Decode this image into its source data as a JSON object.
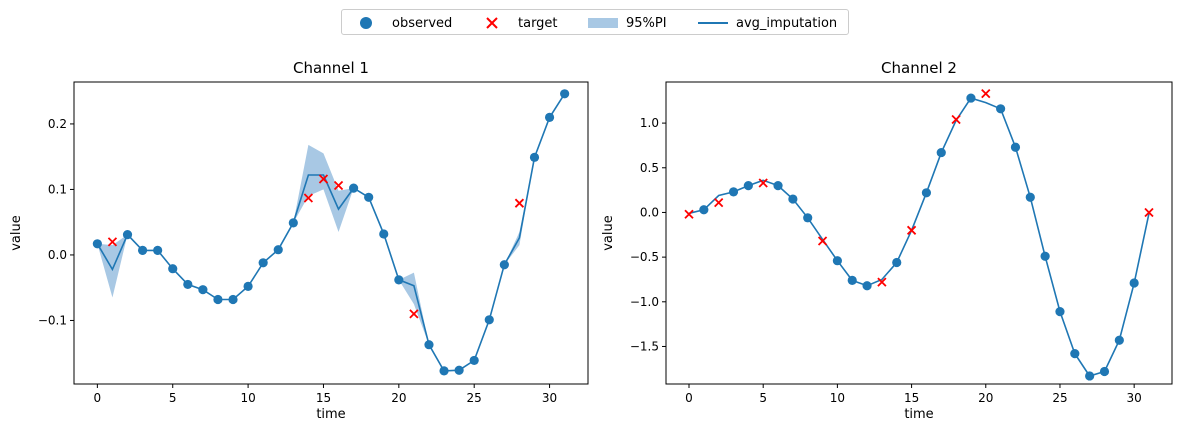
{
  "legend": {
    "observed": "observed",
    "target": "target",
    "pi": "95%PI",
    "avg": "avg_imputation"
  },
  "colors": {
    "series": "#1f77b4",
    "target": "#ff0000",
    "band": "#a8c8e4"
  },
  "chart_data": [
    {
      "type": "line",
      "title": "Channel 1",
      "xlabel": "time",
      "ylabel": "value",
      "xlim": [
        -1.55,
        32.55
      ],
      "ylim": [
        -0.197,
        0.264
      ],
      "xticks": [
        0,
        5,
        10,
        15,
        20,
        25,
        30
      ],
      "yticks": [
        -0.1,
        0.0,
        0.1,
        0.2
      ],
      "ytick_labels": [
        "−0.1",
        "0.0",
        "0.1",
        "0.2"
      ],
      "observed": [
        [
          0,
          0.017
        ],
        [
          2,
          0.031
        ],
        [
          3,
          0.007
        ],
        [
          4,
          0.007
        ],
        [
          5,
          -0.021
        ],
        [
          6,
          -0.045
        ],
        [
          7,
          -0.053
        ],
        [
          8,
          -0.068
        ],
        [
          9,
          -0.068
        ],
        [
          10,
          -0.048
        ],
        [
          11,
          -0.012
        ],
        [
          12,
          0.008
        ],
        [
          13,
          0.049
        ],
        [
          17,
          0.102
        ],
        [
          18,
          0.088
        ],
        [
          19,
          0.032
        ],
        [
          20,
          -0.038
        ],
        [
          22,
          -0.137
        ],
        [
          23,
          -0.177
        ],
        [
          24,
          -0.176
        ],
        [
          25,
          -0.161
        ],
        [
          26,
          -0.099
        ],
        [
          27,
          -0.015
        ],
        [
          29,
          0.149
        ],
        [
          30,
          0.21
        ],
        [
          31,
          0.246
        ]
      ],
      "target": [
        [
          1,
          0.02
        ],
        [
          14,
          0.087
        ],
        [
          15,
          0.116
        ],
        [
          16,
          0.106
        ],
        [
          21,
          -0.09
        ],
        [
          28,
          0.079
        ]
      ],
      "avg_imputation": [
        [
          0,
          0.017
        ],
        [
          1,
          -0.022
        ],
        [
          2,
          0.031
        ],
        [
          3,
          0.007
        ],
        [
          4,
          0.007
        ],
        [
          5,
          -0.021
        ],
        [
          6,
          -0.045
        ],
        [
          7,
          -0.053
        ],
        [
          8,
          -0.068
        ],
        [
          9,
          -0.068
        ],
        [
          10,
          -0.048
        ],
        [
          11,
          -0.012
        ],
        [
          12,
          0.008
        ],
        [
          13,
          0.049
        ],
        [
          14,
          0.122
        ],
        [
          15,
          0.122
        ],
        [
          16,
          0.07
        ],
        [
          17,
          0.102
        ],
        [
          18,
          0.088
        ],
        [
          19,
          0.032
        ],
        [
          20,
          -0.038
        ],
        [
          21,
          -0.047
        ],
        [
          22,
          -0.137
        ],
        [
          23,
          -0.177
        ],
        [
          24,
          -0.176
        ],
        [
          25,
          -0.161
        ],
        [
          26,
          -0.099
        ],
        [
          27,
          -0.015
        ],
        [
          28,
          0.026
        ],
        [
          29,
          0.149
        ],
        [
          30,
          0.21
        ],
        [
          31,
          0.246
        ]
      ],
      "pi_lower": [
        [
          0,
          0.017
        ],
        [
          1,
          -0.065
        ],
        [
          2,
          0.031
        ],
        [
          13,
          0.049
        ],
        [
          14,
          0.09
        ],
        [
          15,
          0.1
        ],
        [
          16,
          0.035
        ],
        [
          17,
          0.102
        ],
        [
          20,
          -0.038
        ],
        [
          21,
          -0.075
        ],
        [
          22,
          -0.137
        ],
        [
          27,
          -0.015
        ],
        [
          28,
          0.015
        ],
        [
          29,
          0.149
        ]
      ],
      "pi_upper": [
        [
          0,
          0.017
        ],
        [
          1,
          0.015
        ],
        [
          2,
          0.031
        ],
        [
          13,
          0.049
        ],
        [
          14,
          0.168
        ],
        [
          15,
          0.155
        ],
        [
          16,
          0.098
        ],
        [
          17,
          0.102
        ],
        [
          20,
          -0.038
        ],
        [
          21,
          -0.027
        ],
        [
          22,
          -0.137
        ],
        [
          27,
          -0.015
        ],
        [
          28,
          0.035
        ],
        [
          29,
          0.149
        ]
      ]
    },
    {
      "type": "line",
      "title": "Channel 2",
      "xlabel": "time",
      "ylabel": "value",
      "xlim": [
        -1.55,
        32.55
      ],
      "ylim": [
        -1.92,
        1.46
      ],
      "xticks": [
        0,
        5,
        10,
        15,
        20,
        25,
        30
      ],
      "yticks": [
        -1.5,
        -1.0,
        -0.5,
        0.0,
        0.5,
        1.0
      ],
      "ytick_labels": [
        "−1.5",
        "−1.0",
        "−0.5",
        "0.0",
        "0.5",
        "1.0"
      ],
      "observed": [
        [
          1,
          0.03
        ],
        [
          3,
          0.23
        ],
        [
          4,
          0.3
        ],
        [
          6,
          0.3
        ],
        [
          7,
          0.15
        ],
        [
          8,
          -0.06
        ],
        [
          10,
          -0.54
        ],
        [
          11,
          -0.76
        ],
        [
          12,
          -0.82
        ],
        [
          14,
          -0.56
        ],
        [
          16,
          0.22
        ],
        [
          17,
          0.67
        ],
        [
          19,
          1.28
        ],
        [
          21,
          1.16
        ],
        [
          22,
          0.73
        ],
        [
          23,
          0.17
        ],
        [
          24,
          -0.49
        ],
        [
          25,
          -1.11
        ],
        [
          26,
          -1.58
        ],
        [
          27,
          -1.83
        ],
        [
          28,
          -1.78
        ],
        [
          29,
          -1.43
        ],
        [
          30,
          -0.79
        ]
      ],
      "target": [
        [
          0,
          -0.02
        ],
        [
          2,
          0.11
        ],
        [
          5,
          0.33
        ],
        [
          9,
          -0.32
        ],
        [
          13,
          -0.78
        ],
        [
          15,
          -0.2
        ],
        [
          18,
          1.04
        ],
        [
          20,
          1.33
        ],
        [
          31,
          0.0
        ]
      ],
      "avg_imputation": [
        [
          0,
          -0.01
        ],
        [
          1,
          0.03
        ],
        [
          2,
          0.19
        ],
        [
          3,
          0.23
        ],
        [
          4,
          0.3
        ],
        [
          5,
          0.36
        ],
        [
          6,
          0.3
        ],
        [
          7,
          0.15
        ],
        [
          8,
          -0.06
        ],
        [
          9,
          -0.3
        ],
        [
          10,
          -0.54
        ],
        [
          11,
          -0.76
        ],
        [
          12,
          -0.82
        ],
        [
          13,
          -0.75
        ],
        [
          14,
          -0.56
        ],
        [
          15,
          -0.2
        ],
        [
          16,
          0.22
        ],
        [
          17,
          0.67
        ],
        [
          18,
          1.03
        ],
        [
          19,
          1.28
        ],
        [
          20,
          1.23
        ],
        [
          21,
          1.16
        ],
        [
          22,
          0.73
        ],
        [
          23,
          0.17
        ],
        [
          24,
          -0.49
        ],
        [
          25,
          -1.11
        ],
        [
          26,
          -1.58
        ],
        [
          27,
          -1.83
        ],
        [
          28,
          -1.78
        ],
        [
          29,
          -1.43
        ],
        [
          30,
          -0.79
        ],
        [
          31,
          -0.01
        ]
      ]
    }
  ]
}
